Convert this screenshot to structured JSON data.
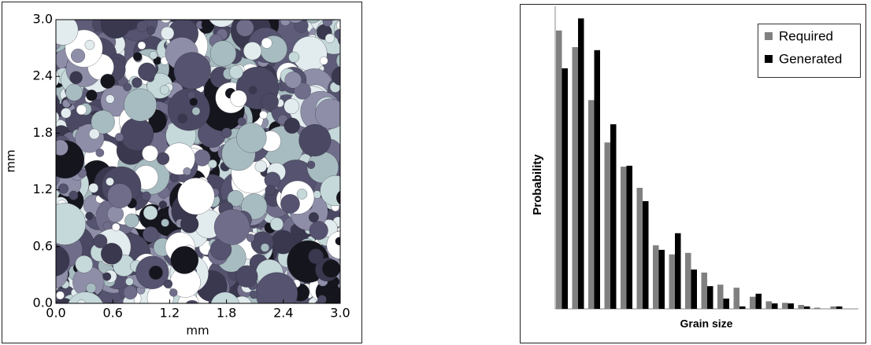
{
  "chart_data": [
    {
      "type": "image",
      "xlabel": "mm",
      "ylabel": "mm",
      "xlim": [
        0,
        3
      ],
      "ylim": [
        0,
        3
      ],
      "xticks": [
        {
          "value": 0,
          "label": "0.0"
        },
        {
          "value": 0.6,
          "label": "0.6"
        },
        {
          "value": 1.2,
          "label": "1.2"
        },
        {
          "value": 1.8,
          "label": "1.8"
        },
        {
          "value": 2.4,
          "label": "2.4"
        },
        {
          "value": 3,
          "label": "3.0"
        }
      ],
      "yticks": [
        {
          "value": 0,
          "label": "0.0"
        },
        {
          "value": 0.6,
          "label": "0.6"
        },
        {
          "value": 1.2,
          "label": "1.2"
        },
        {
          "value": 1.8,
          "label": "1.8"
        },
        {
          "value": 2.4,
          "label": "2.4"
        },
        {
          "value": 3,
          "label": "3.0"
        }
      ]
    },
    {
      "type": "bar",
      "xlabel": "Grain size",
      "ylabel": "Probability",
      "categories": [
        null,
        null,
        null,
        null,
        null,
        null,
        null,
        null,
        null,
        null,
        null,
        null,
        null,
        null,
        null,
        null,
        null,
        null
      ],
      "ylim": [
        0,
        100
      ],
      "legend": "upper-right",
      "series": [
        {
          "name": "Required",
          "color": "#808080",
          "values": [
            92,
            86.5,
            69,
            55,
            47,
            40,
            21,
            18,
            18.5,
            12,
            8,
            7,
            4,
            2.5,
            2,
            1.3,
            0.4,
            0.8
          ]
        },
        {
          "name": "Generated",
          "color": "#000000",
          "values": [
            79.5,
            96,
            85.5,
            61,
            47.3,
            35.6,
            19.5,
            25,
            13,
            7.5,
            3.4,
            0.8,
            5,
            1.8,
            1.8,
            0.8,
            0,
            0.8
          ]
        }
      ]
    }
  ]
}
